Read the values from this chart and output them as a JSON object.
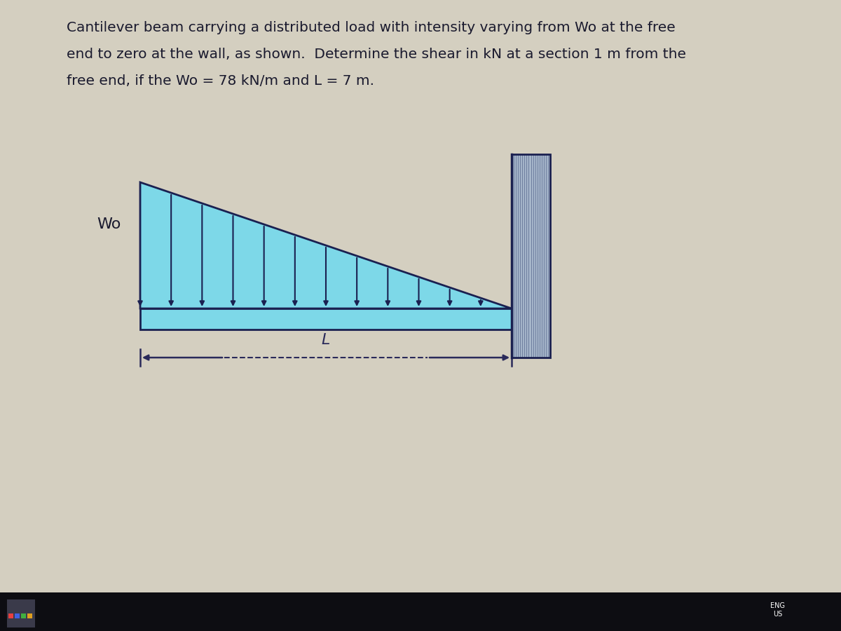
{
  "bg_color": "#d4cfc0",
  "bg_bottom": "#1a1a1a",
  "text_color": "#1a1a2e",
  "title_lines": [
    "Cantilever beam carrying a distributed load with intensity varying from Wo at the free",
    "end to zero at the wall, as shown.  Determine the shear in kN at a section 1 m from the",
    "free end, if the Wo = 78 kN/m and L = 7 m."
  ],
  "beam_color": "#7dd8e8",
  "beam_outline": "#1a2050",
  "load_color": "#7dd8e8",
  "load_outline": "#1a2050",
  "wall_color": "#a8b8cc",
  "wall_outline": "#1a2050",
  "arrow_color": "#1a2050",
  "dim_arrow_color": "#2a2a5a",
  "wo_color": "#1a1a2e",
  "beam_lw": 2.0,
  "arrow_lw": 1.5,
  "num_arrows": 12,
  "title_fontsize": 14.5,
  "label_fontsize": 16
}
